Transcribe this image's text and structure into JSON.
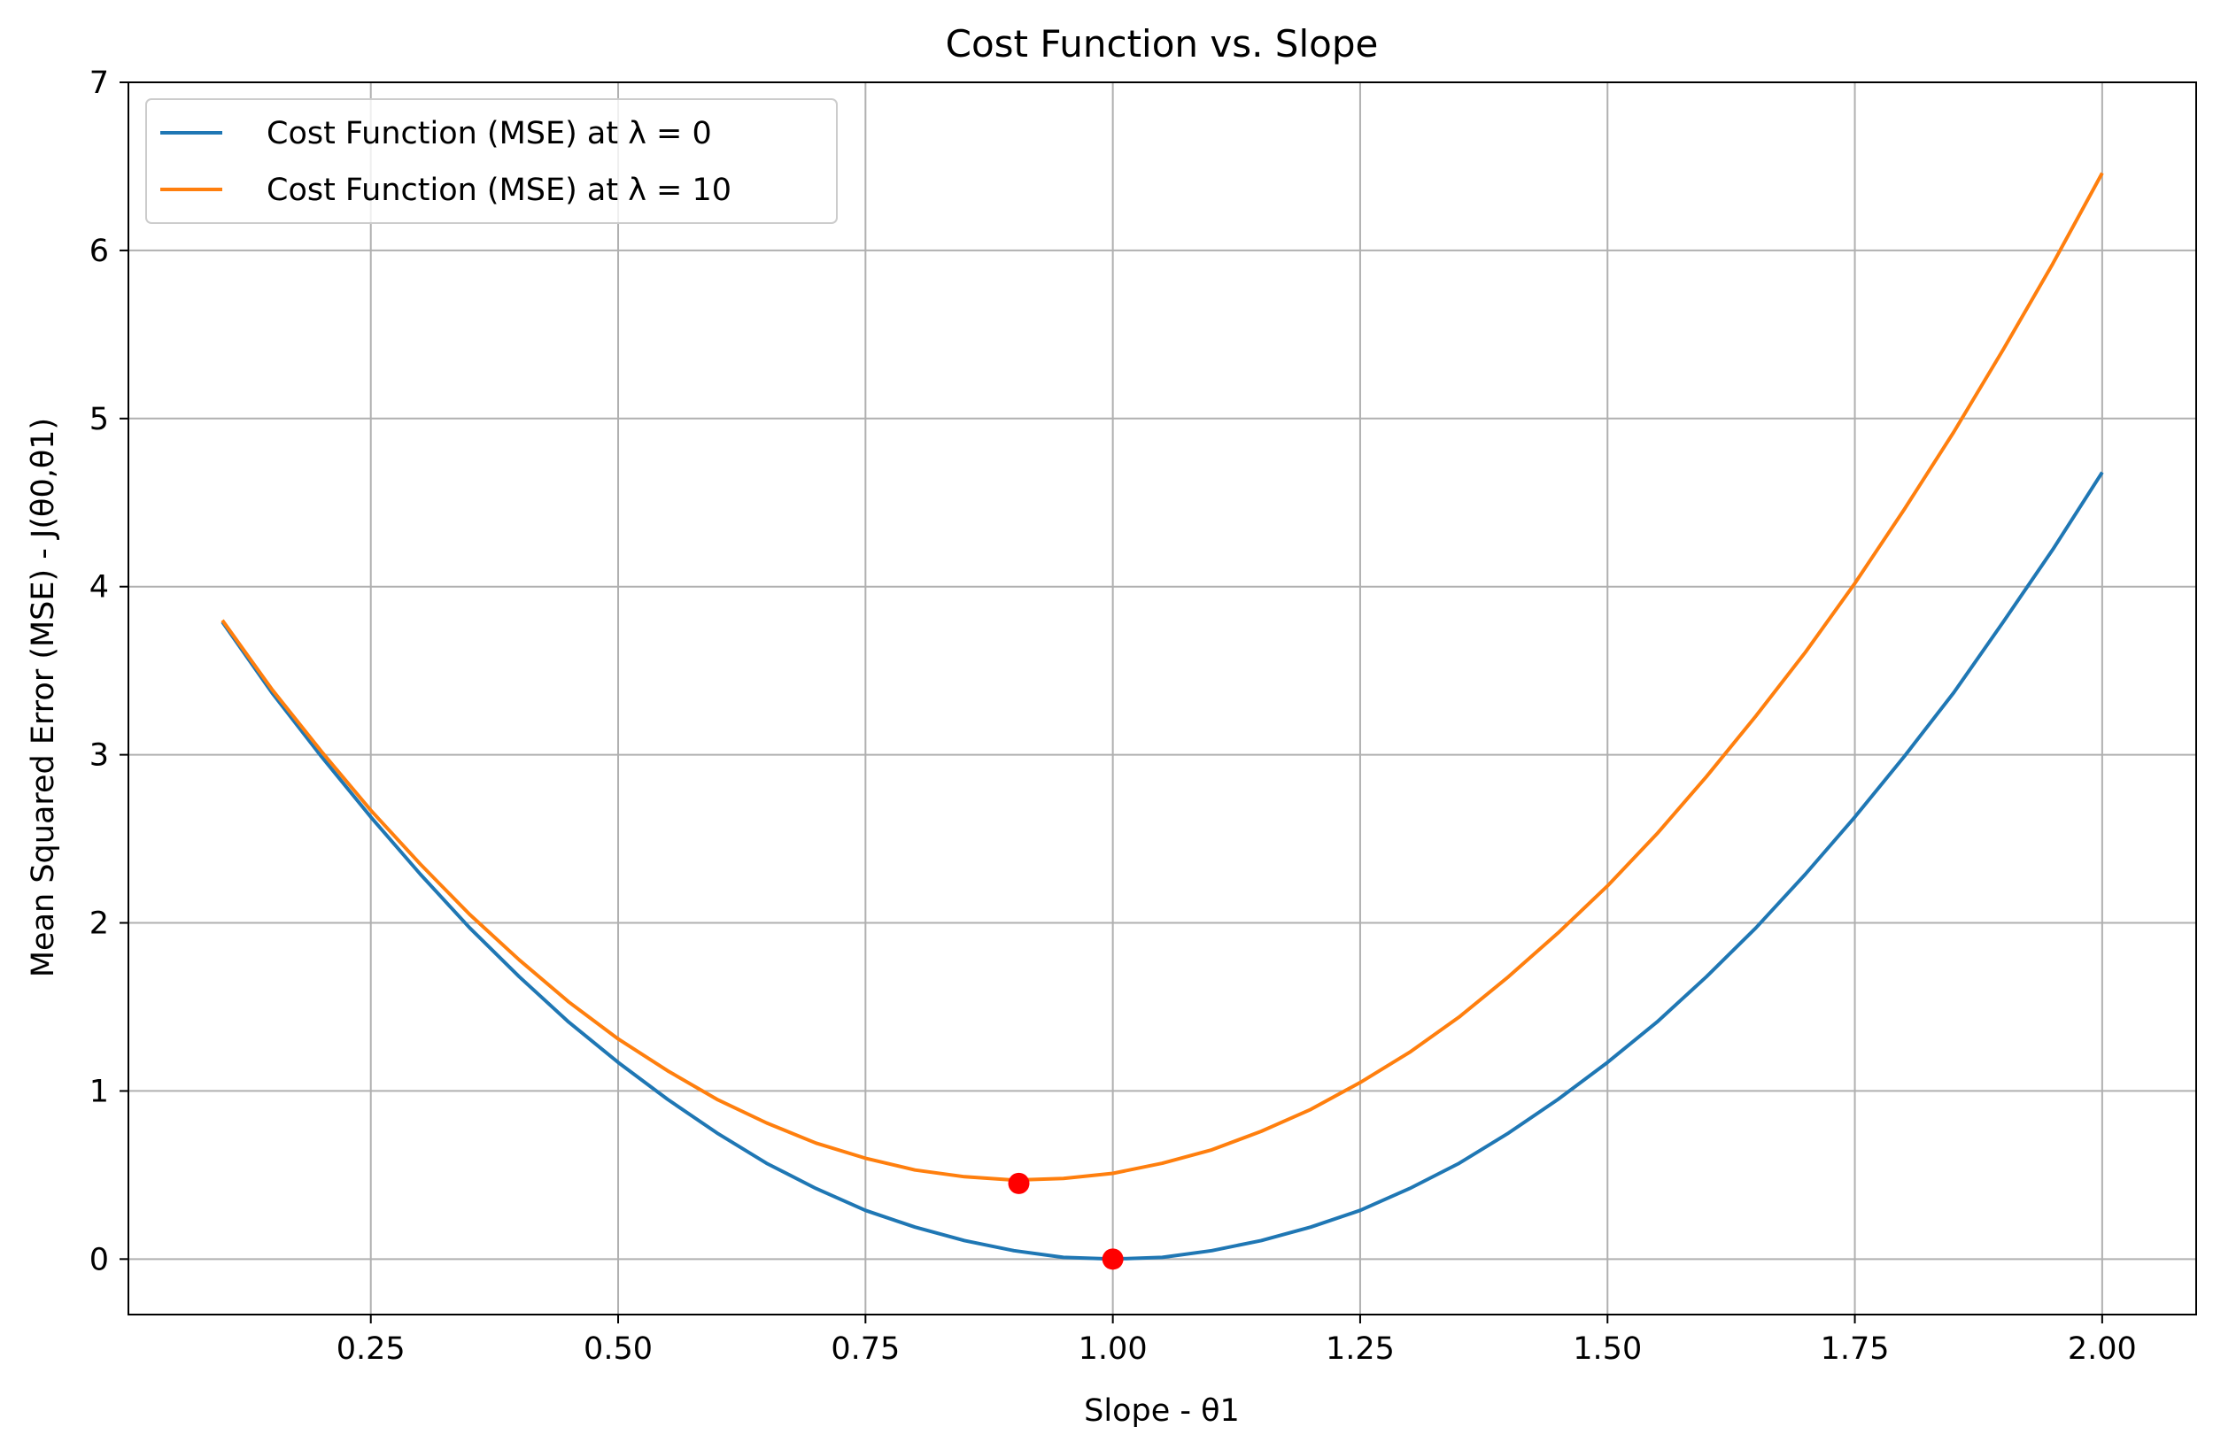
{
  "chart_data": {
    "type": "line",
    "title": "Cost Function vs. Slope",
    "xlabel": "Slope - θ1",
    "ylabel": "Mean Squared Error (MSE) - J(θ0,θ1)",
    "xlim": [
      0.005,
      2.095
    ],
    "ylim": [
      -0.33,
      7
    ],
    "xticks": [
      0.25,
      0.5,
      0.75,
      1.0,
      1.25,
      1.5,
      1.75,
      2.0
    ],
    "xtick_labels": [
      "0.25",
      "0.50",
      "0.75",
      "1.00",
      "1.25",
      "1.50",
      "1.75",
      "2.00"
    ],
    "yticks": [
      0,
      1,
      2,
      3,
      4,
      5,
      6,
      7
    ],
    "ytick_labels": [
      "0",
      "1",
      "2",
      "3",
      "4",
      "5",
      "6",
      "7"
    ],
    "grid": true,
    "legend_position": "top-left",
    "series": [
      {
        "name": "Cost Function (MSE) at λ = 0",
        "color": "#1f77b4",
        "x": [
          0.1,
          0.15,
          0.2,
          0.25,
          0.3,
          0.35,
          0.4,
          0.45,
          0.5,
          0.55,
          0.6,
          0.65,
          0.7,
          0.75,
          0.8,
          0.85,
          0.9,
          0.95,
          1.0,
          1.05,
          1.1,
          1.15,
          1.2,
          1.25,
          1.3,
          1.35,
          1.4,
          1.45,
          1.5,
          1.55,
          1.6,
          1.65,
          1.7,
          1.75,
          1.8,
          1.85,
          1.9,
          1.95,
          2.0
        ],
        "y": [
          3.79,
          3.37,
          2.99,
          2.63,
          2.29,
          1.97,
          1.68,
          1.41,
          1.17,
          0.95,
          0.75,
          0.57,
          0.42,
          0.29,
          0.19,
          0.11,
          0.05,
          0.01,
          0.0,
          0.01,
          0.05,
          0.11,
          0.19,
          0.29,
          0.42,
          0.57,
          0.75,
          0.95,
          1.17,
          1.41,
          1.68,
          1.97,
          2.29,
          2.63,
          2.99,
          3.37,
          3.79,
          4.22,
          4.68
        ]
      },
      {
        "name": "Cost Function (MSE) at λ = 10",
        "color": "#ff7f0e",
        "x": [
          0.1,
          0.15,
          0.2,
          0.25,
          0.3,
          0.35,
          0.4,
          0.45,
          0.5,
          0.55,
          0.6,
          0.65,
          0.7,
          0.75,
          0.8,
          0.85,
          0.9,
          0.95,
          1.0,
          1.05,
          1.1,
          1.15,
          1.2,
          1.25,
          1.3,
          1.35,
          1.4,
          1.45,
          1.5,
          1.55,
          1.6,
          1.65,
          1.7,
          1.75,
          1.8,
          1.85,
          1.9,
          1.95,
          2.0
        ],
        "y": [
          3.8,
          3.39,
          3.02,
          2.67,
          2.35,
          2.05,
          1.78,
          1.53,
          1.31,
          1.12,
          0.95,
          0.81,
          0.69,
          0.6,
          0.53,
          0.49,
          0.47,
          0.48,
          0.51,
          0.57,
          0.65,
          0.76,
          0.89,
          1.05,
          1.23,
          1.44,
          1.68,
          1.94,
          2.22,
          2.53,
          2.87,
          3.23,
          3.61,
          4.02,
          4.46,
          4.92,
          5.41,
          5.92,
          6.46
        ]
      }
    ],
    "points": [
      {
        "x": 0.905,
        "y": 0.45,
        "color": "#ff0000"
      },
      {
        "x": 1.0,
        "y": 0.0,
        "color": "#ff0000"
      }
    ]
  }
}
